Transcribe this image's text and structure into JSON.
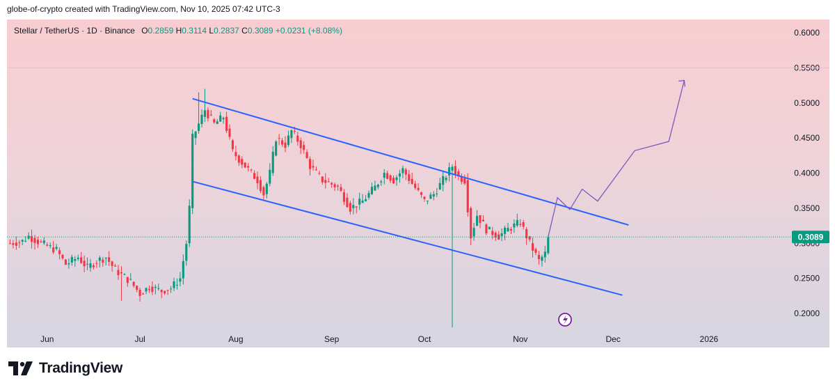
{
  "header": {
    "attribution": "globe-of-crypto created with TradingView.com, Nov 10, 2025 07:42 UTC-3"
  },
  "legend": {
    "symbol": "Stellar / TetherUS · 1D · Binance",
    "o_label": "O",
    "o": "0.2859",
    "h_label": "H",
    "h": "0.3114",
    "l_label": "L",
    "l": "0.2837",
    "c_label": "C",
    "c": "0.3089",
    "change": "+0.0231 (+8.08%)"
  },
  "footer": {
    "brand": "TradingView"
  },
  "colors": {
    "up": "#089981",
    "down": "#f23645",
    "channel": "#2962ff",
    "projection": "#7e57c2",
    "price_tag": "#089981"
  },
  "chart_data": {
    "type": "candlestick",
    "symbol": "XLM/USDT",
    "interval": "1D",
    "y_ticks": [
      "0.2000",
      "0.2500",
      "0.3000",
      "0.3500",
      "0.4000",
      "0.4500",
      "0.5000",
      "0.5500",
      "0.6000"
    ],
    "x_ticks": [
      "Jun",
      "Jul",
      "Aug",
      "Sep",
      "Oct",
      "Nov",
      "Dec",
      "2026"
    ],
    "ylim": [
      0.18,
      0.62
    ],
    "y_axis_side": "right",
    "last_price_label": "0.3089",
    "grid": "off",
    "price_path": [
      [
        "2025-05-20",
        0.3
      ],
      [
        "2025-05-24",
        0.303
      ],
      [
        "2025-05-26",
        0.31
      ],
      [
        "2025-05-30",
        0.3
      ],
      [
        "2025-06-04",
        0.29
      ],
      [
        "2025-06-07",
        0.27
      ],
      [
        "2025-06-11",
        0.28
      ],
      [
        "2025-06-14",
        0.265
      ],
      [
        "2025-06-17",
        0.275
      ],
      [
        "2025-06-20",
        0.28
      ],
      [
        "2025-06-23",
        0.262
      ],
      [
        "2025-06-28",
        0.245
      ],
      [
        "2025-07-01",
        0.228
      ],
      [
        "2025-07-04",
        0.238
      ],
      [
        "2025-07-08",
        0.232
      ],
      [
        "2025-07-11",
        0.236
      ],
      [
        "2025-07-14",
        0.25
      ],
      [
        "2025-07-16",
        0.3
      ],
      [
        "2025-07-17",
        0.35
      ],
      [
        "2025-07-18",
        0.45
      ],
      [
        "2025-07-20",
        0.47
      ],
      [
        "2025-07-22",
        0.49
      ],
      [
        "2025-07-25",
        0.47
      ],
      [
        "2025-07-28",
        0.48
      ],
      [
        "2025-07-31",
        0.43
      ],
      [
        "2025-08-04",
        0.41
      ],
      [
        "2025-08-08",
        0.39
      ],
      [
        "2025-08-10",
        0.37
      ],
      [
        "2025-08-12",
        0.4
      ],
      [
        "2025-08-14",
        0.45
      ],
      [
        "2025-08-17",
        0.44
      ],
      [
        "2025-08-19",
        0.46
      ],
      [
        "2025-08-22",
        0.44
      ],
      [
        "2025-08-25",
        0.41
      ],
      [
        "2025-08-29",
        0.39
      ],
      [
        "2025-09-03",
        0.38
      ],
      [
        "2025-09-07",
        0.35
      ],
      [
        "2025-09-11",
        0.36
      ],
      [
        "2025-09-15",
        0.38
      ],
      [
        "2025-09-18",
        0.4
      ],
      [
        "2025-09-21",
        0.39
      ],
      [
        "2025-09-24",
        0.405
      ],
      [
        "2025-09-27",
        0.385
      ],
      [
        "2025-10-01",
        0.36
      ],
      [
        "2025-10-04",
        0.37
      ],
      [
        "2025-10-07",
        0.39
      ],
      [
        "2025-10-10",
        0.41
      ],
      [
        "2025-10-12",
        0.395
      ],
      [
        "2025-10-14",
        0.39
      ],
      [
        "2025-10-16",
        0.31
      ],
      [
        "2025-10-18",
        0.34
      ],
      [
        "2025-10-21",
        0.32
      ],
      [
        "2025-10-25",
        0.31
      ],
      [
        "2025-10-28",
        0.32
      ],
      [
        "2025-11-01",
        0.33
      ],
      [
        "2025-11-04",
        0.3
      ],
      [
        "2025-11-07",
        0.275
      ],
      [
        "2025-11-09",
        0.285
      ],
      [
        "2025-11-10",
        0.309
      ]
    ],
    "annotations": [
      {
        "type": "channel_upper",
        "points": [
          [
            "2025-07-18",
            0.506
          ],
          [
            "2025-12-06",
            0.326
          ]
        ]
      },
      {
        "type": "channel_lower",
        "points": [
          [
            "2025-07-18",
            0.388
          ],
          [
            "2025-12-04",
            0.226
          ]
        ]
      },
      {
        "type": "projection",
        "points": [
          [
            "2025-11-10",
            0.309
          ],
          [
            "2025-11-13",
            0.365
          ],
          [
            "2025-11-17",
            0.348
          ],
          [
            "2025-11-21",
            0.377
          ],
          [
            "2025-11-26",
            0.36
          ],
          [
            "2025-12-08",
            0.432
          ],
          [
            "2025-12-19",
            0.445
          ],
          [
            "2025-12-24",
            0.532
          ]
        ]
      }
    ]
  }
}
